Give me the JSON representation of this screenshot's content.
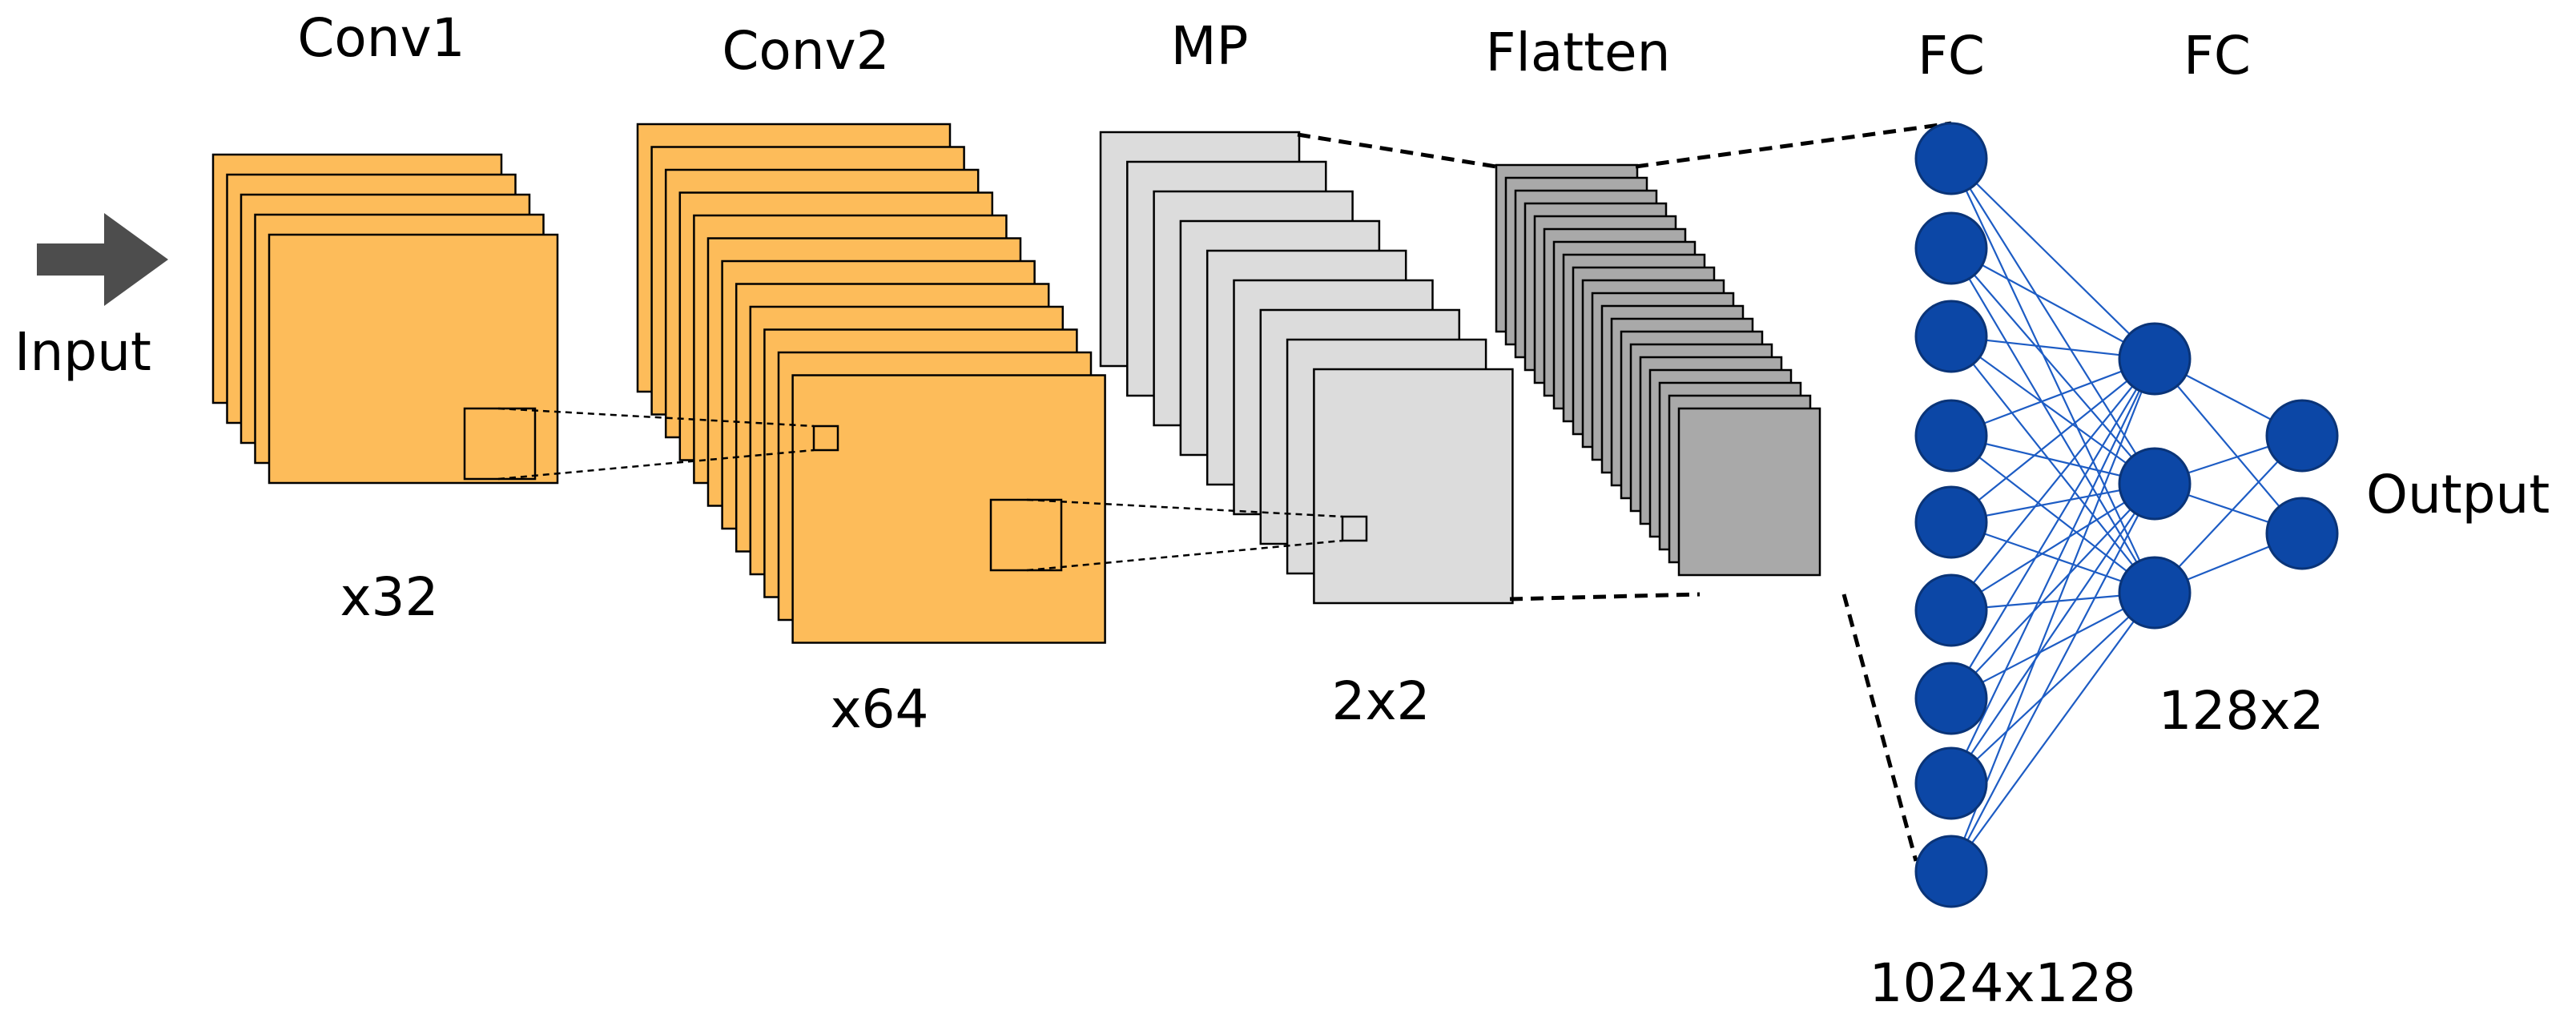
{
  "labels": {
    "input": "Input",
    "conv1": "Conv1",
    "conv2": "Conv2",
    "mp": "MP",
    "flatten": "Flatten",
    "fc1": "FC",
    "fc2": "FC",
    "output": "Output",
    "conv1_count": "x32",
    "conv2_count": "x64",
    "mp_size": "2x2",
    "fc1_size": "1024x128",
    "fc2_size": "128x2"
  },
  "colors": {
    "conv_fill": "#FDBC5A",
    "pool_fill": "#DCDCDC",
    "flatten_fill": "#A9A9A9",
    "neuron_fill": "#0C47A6",
    "neuron_stroke": "#0A3478",
    "edge": "#1D5CC4",
    "arrow": "#4D4D4D"
  },
  "network": {
    "layer_sizes": [
      9,
      3,
      2
    ]
  }
}
